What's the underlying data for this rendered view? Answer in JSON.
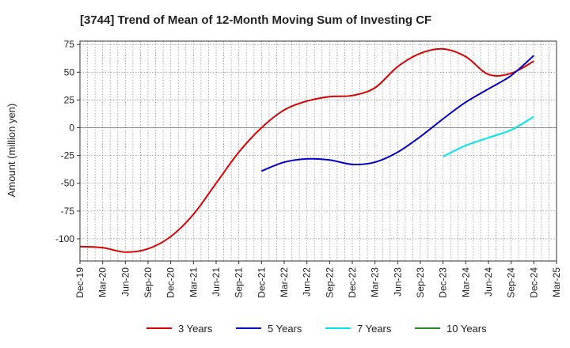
{
  "chart_data": {
    "type": "line",
    "title": "[3744]  Trend of Mean of 12-Month Moving Sum of Investing CF",
    "xlabel": "",
    "ylabel": "Amount (million yen)",
    "ylim": [
      -120,
      78
    ],
    "yticks": [
      75,
      50,
      25,
      0,
      -25,
      -50,
      -75,
      -100
    ],
    "xticks": [
      "Dec-19",
      "Mar-20",
      "Jun-20",
      "Sep-20",
      "Dec-20",
      "Mar-21",
      "Jun-21",
      "Sep-21",
      "Dec-21",
      "Mar-22",
      "Jun-22",
      "Sep-22",
      "Dec-22",
      "Mar-23",
      "Jun-23",
      "Sep-23",
      "Dec-23",
      "Mar-24",
      "Jun-24",
      "Sep-24",
      "Dec-24",
      "Mar-25"
    ],
    "grid": true,
    "legend_position": "bottom",
    "series": [
      {
        "name": "3 Years",
        "color": "#dd0000",
        "points": [
          [
            0,
            -107
          ],
          [
            1,
            -108
          ],
          [
            2,
            -112
          ],
          [
            3,
            -109
          ],
          [
            4,
            -98
          ],
          [
            5,
            -78
          ],
          [
            6,
            -50
          ],
          [
            7,
            -22
          ],
          [
            8,
            0
          ],
          [
            9,
            16
          ],
          [
            10,
            24
          ],
          [
            11,
            28
          ],
          [
            12,
            29
          ],
          [
            13,
            36
          ],
          [
            14,
            55
          ],
          [
            15,
            67
          ],
          [
            16,
            71
          ],
          [
            17,
            64
          ],
          [
            18,
            48
          ],
          [
            19,
            49
          ],
          [
            20,
            60
          ]
        ]
      },
      {
        "name": "5 Years",
        "color": "#0000cc",
        "points": [
          [
            8,
            -39
          ],
          [
            9,
            -31
          ],
          [
            10,
            -28
          ],
          [
            11,
            -29
          ],
          [
            12,
            -33
          ],
          [
            13,
            -31
          ],
          [
            14,
            -22
          ],
          [
            15,
            -8
          ],
          [
            16,
            8
          ],
          [
            17,
            23
          ],
          [
            18,
            35
          ],
          [
            19,
            47
          ],
          [
            20,
            65
          ]
        ]
      },
      {
        "name": "7 Years",
        "color": "#00e5ee",
        "points": [
          [
            16,
            -26
          ],
          [
            17,
            -16
          ],
          [
            18,
            -9
          ],
          [
            19,
            -2
          ],
          [
            20,
            10
          ]
        ]
      },
      {
        "name": "10 Years",
        "color": "#228b22",
        "points": []
      }
    ]
  }
}
